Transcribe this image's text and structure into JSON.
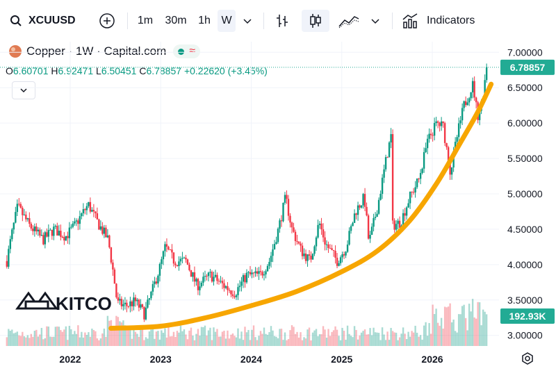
{
  "toolbar": {
    "symbol": "XCUUSD",
    "intervals": [
      "1m",
      "30m",
      "1h",
      "W"
    ],
    "active_interval": "W",
    "indicators_label": "Indicators"
  },
  "legend": {
    "title": "Copper · 1W · Capital.com",
    "open_key": "O",
    "open": "6.60701",
    "high_key": "H",
    "high": "6.92471",
    "low_key": "L",
    "low": "6.50451",
    "close_key": "C",
    "close": "6.78857",
    "change": "+0.22620 (+3.45%)"
  },
  "watermark": "KITCO",
  "colors": {
    "up": "#089981",
    "down": "#f23645",
    "curve": "#f7a600",
    "badge": "#22ab94"
  },
  "chart_data": {
    "type": "candlestick",
    "title": "Copper · 1W · Capital.com",
    "x_ticks": [
      "2022",
      "2023",
      "2024",
      "2025",
      "2026"
    ],
    "y_ticks": [
      "7.00000",
      "6.50000",
      "6.00000",
      "5.50000",
      "5.00000",
      "4.50000",
      "4.00000",
      "3.50000",
      "3.00000"
    ],
    "ylim": [
      2.85,
      7.15
    ],
    "last_price_label": "6.78857",
    "last_price": 6.78857,
    "volume_label": "192.93K",
    "price_path": [
      {
        "t": 2021.3,
        "v": 4.05
      },
      {
        "t": 2021.35,
        "v": 4.4
      },
      {
        "t": 2021.42,
        "v": 4.82
      },
      {
        "t": 2021.55,
        "v": 4.55
      },
      {
        "t": 2021.7,
        "v": 4.35
      },
      {
        "t": 2021.82,
        "v": 4.5
      },
      {
        "t": 2021.95,
        "v": 4.4
      },
      {
        "t": 2022.05,
        "v": 4.55
      },
      {
        "t": 2022.2,
        "v": 4.85
      },
      {
        "t": 2022.3,
        "v": 4.6
      },
      {
        "t": 2022.42,
        "v": 4.35
      },
      {
        "t": 2022.48,
        "v": 3.85
      },
      {
        "t": 2022.52,
        "v": 3.45
      },
      {
        "t": 2022.62,
        "v": 3.42
      },
      {
        "t": 2022.72,
        "v": 3.48
      },
      {
        "t": 2022.82,
        "v": 3.3
      },
      {
        "t": 2022.9,
        "v": 3.6
      },
      {
        "t": 2023.0,
        "v": 4.0
      },
      {
        "t": 2023.05,
        "v": 4.25
      },
      {
        "t": 2023.15,
        "v": 4.05
      },
      {
        "t": 2023.28,
        "v": 4.05
      },
      {
        "t": 2023.4,
        "v": 3.7
      },
      {
        "t": 2023.55,
        "v": 3.85
      },
      {
        "t": 2023.7,
        "v": 3.7
      },
      {
        "t": 2023.82,
        "v": 3.6
      },
      {
        "t": 2023.95,
        "v": 3.85
      },
      {
        "t": 2024.1,
        "v": 3.85
      },
      {
        "t": 2024.2,
        "v": 4.05
      },
      {
        "t": 2024.3,
        "v": 4.5
      },
      {
        "t": 2024.38,
        "v": 4.95
      },
      {
        "t": 2024.45,
        "v": 4.5
      },
      {
        "t": 2024.55,
        "v": 4.2
      },
      {
        "t": 2024.65,
        "v": 4.05
      },
      {
        "t": 2024.75,
        "v": 4.6
      },
      {
        "t": 2024.82,
        "v": 4.3
      },
      {
        "t": 2024.95,
        "v": 4.05
      },
      {
        "t": 2025.05,
        "v": 4.25
      },
      {
        "t": 2025.15,
        "v": 4.75
      },
      {
        "t": 2025.25,
        "v": 4.95
      },
      {
        "t": 2025.3,
        "v": 4.3
      },
      {
        "t": 2025.4,
        "v": 4.85
      },
      {
        "t": 2025.5,
        "v": 5.55
      },
      {
        "t": 2025.55,
        "v": 5.85
      },
      {
        "t": 2025.56,
        "v": 4.55
      },
      {
        "t": 2025.65,
        "v": 4.6
      },
      {
        "t": 2025.75,
        "v": 4.95
      },
      {
        "t": 2025.85,
        "v": 5.2
      },
      {
        "t": 2025.95,
        "v": 5.75
      },
      {
        "t": 2026.05,
        "v": 6.0
      },
      {
        "t": 2026.12,
        "v": 5.95
      },
      {
        "t": 2026.2,
        "v": 5.3
      },
      {
        "t": 2026.28,
        "v": 5.85
      },
      {
        "t": 2026.35,
        "v": 6.25
      },
      {
        "t": 2026.45,
        "v": 6.55
      },
      {
        "t": 2026.5,
        "v": 6.1
      },
      {
        "t": 2026.55,
        "v": 6.3
      },
      {
        "t": 2026.6,
        "v": 6.79
      }
    ],
    "trend_curve": [
      {
        "t": 2022.45,
        "v": 3.1
      },
      {
        "t": 2023.0,
        "v": 3.13
      },
      {
        "t": 2023.5,
        "v": 3.25
      },
      {
        "t": 2024.0,
        "v": 3.42
      },
      {
        "t": 2024.5,
        "v": 3.62
      },
      {
        "t": 2025.0,
        "v": 3.9
      },
      {
        "t": 2025.4,
        "v": 4.2
      },
      {
        "t": 2025.75,
        "v": 4.62
      },
      {
        "t": 2026.05,
        "v": 5.15
      },
      {
        "t": 2026.3,
        "v": 5.7
      },
      {
        "t": 2026.5,
        "v": 6.15
      },
      {
        "t": 2026.65,
        "v": 6.55
      }
    ]
  }
}
